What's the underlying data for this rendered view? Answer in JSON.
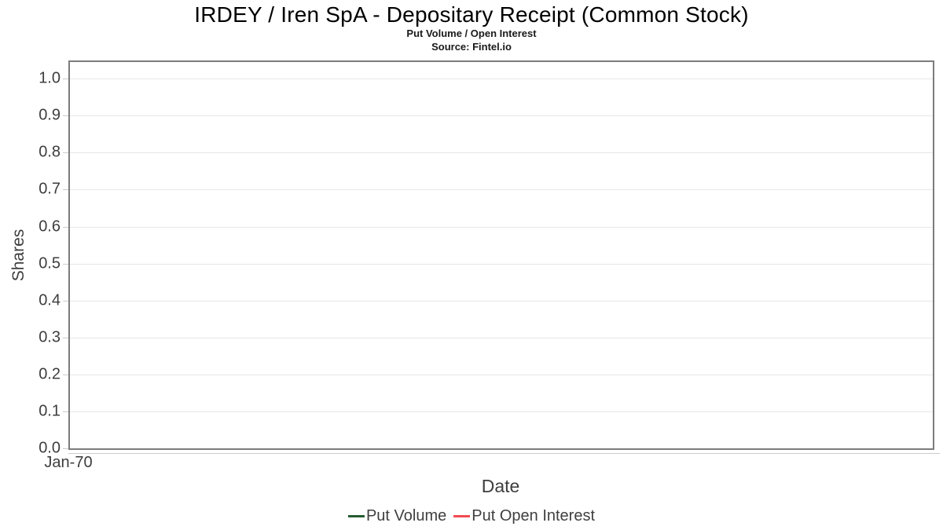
{
  "chart_data": {
    "type": "line",
    "title": "IRDEY / Iren SpA - Depositary Receipt (Common Stock)",
    "subtitle": "Put Volume / Open Interest",
    "source": "Source: Fintel.io",
    "xlabel": "Date",
    "ylabel": "Shares",
    "x_ticks": [
      "Jan-70"
    ],
    "y_ticks": [
      1.0,
      0.9,
      0.8,
      0.7,
      0.6,
      0.5,
      0.4,
      0.3,
      0.2,
      0.1,
      0.0
    ],
    "ylim": [
      0.0,
      1.045
    ],
    "grid": "horizontal-only",
    "legend_position": "bottom-center",
    "series": [
      {
        "name": "Put Volume",
        "color": "#265c31",
        "values": []
      },
      {
        "name": "Put Open Interest",
        "color": "#f04b50",
        "values": []
      }
    ]
  },
  "colors": {
    "plot_border": "#7c7c7c",
    "gridline": "#e7e7e7",
    "tick": "#cccccc",
    "axis_text": "#3d3d3d",
    "title_text": "#000000",
    "legend_text": "#3f3f3f",
    "background": "#ffffff"
  }
}
